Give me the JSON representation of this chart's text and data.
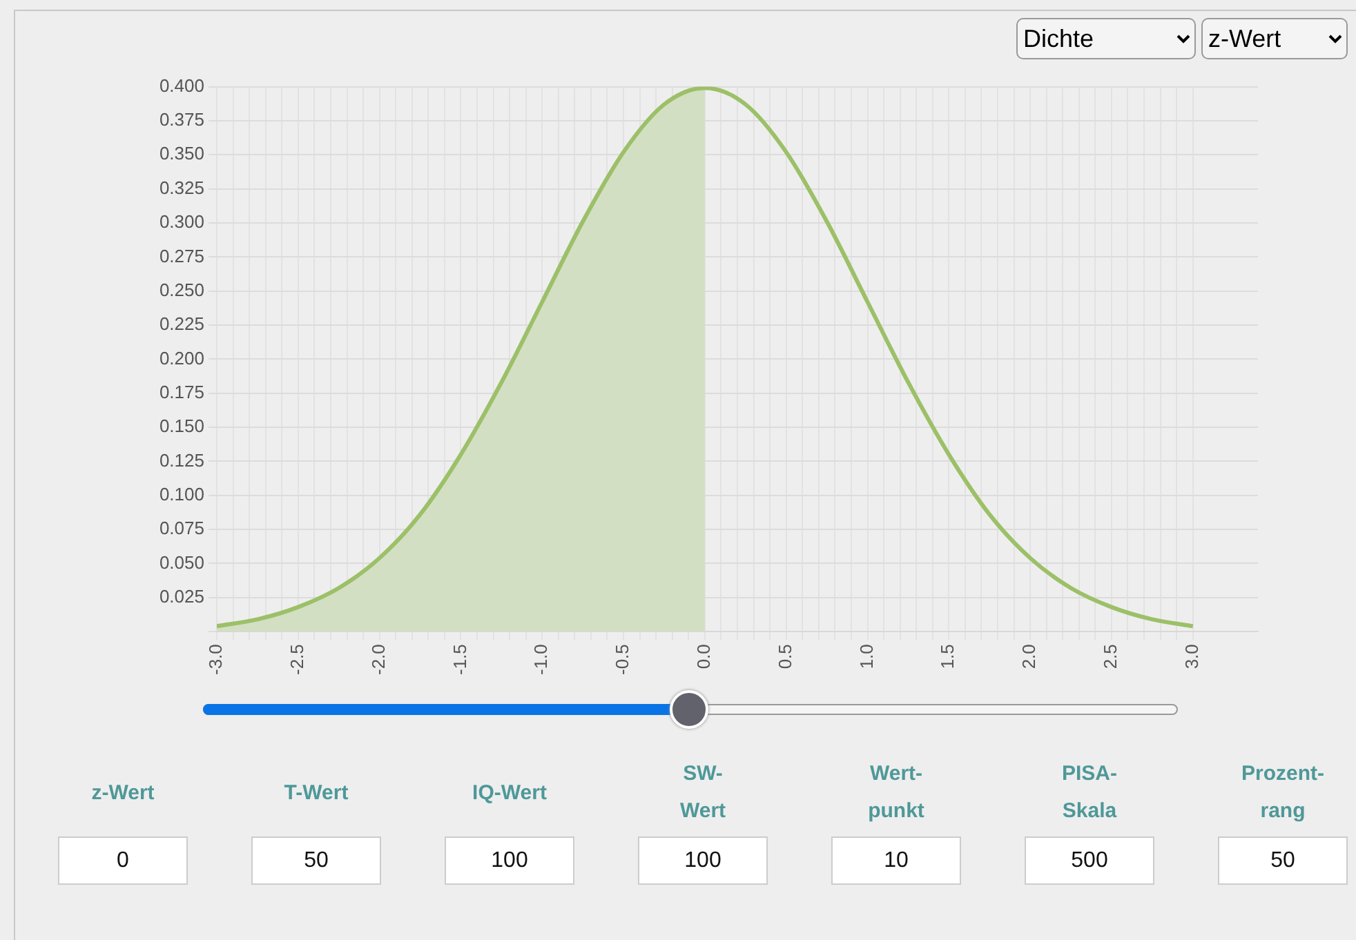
{
  "chart_data": {
    "type": "line",
    "x": [
      -3,
      -2.75,
      -2.5,
      -2.25,
      -2,
      -1.75,
      -1.5,
      -1.25,
      -1,
      -0.75,
      -0.5,
      -0.25,
      0,
      0.25,
      0.5,
      0.75,
      1,
      1.25,
      1.5,
      1.75,
      2,
      2.25,
      2.5,
      2.75,
      3
    ],
    "series": [
      {
        "color": "#9cc068",
        "values": [
          0.004,
          0.009,
          0.018,
          0.032,
          0.054,
          0.086,
          0.13,
          0.183,
          0.242,
          0.301,
          0.352,
          0.387,
          0.399,
          0.387,
          0.352,
          0.301,
          0.242,
          0.183,
          0.13,
          0.086,
          0.054,
          0.032,
          0.018,
          0.009,
          0.004
        ]
      },
      {
        "type": "area",
        "color": "#d3dfc3",
        "x": [
          -3,
          -2.75,
          -2.5,
          -2.25,
          -2,
          -1.75,
          -1.5,
          -1.25,
          -1,
          -0.75,
          -0.5,
          -0.25,
          0
        ],
        "values": [
          0.004,
          0.009,
          0.018,
          0.032,
          0.054,
          0.086,
          0.13,
          0.183,
          0.242,
          0.301,
          0.352,
          0.387,
          0.399
        ]
      }
    ],
    "xlim": [
      -3,
      3.4
    ],
    "xticks": [
      {
        "value": -3,
        "label": "-3.0"
      },
      {
        "value": -2.9,
        "label": null
      },
      {
        "value": -2.8,
        "label": null
      },
      {
        "value": -2.7,
        "label": null
      },
      {
        "value": -2.6,
        "label": null
      },
      {
        "value": -2.5,
        "label": "-2.5"
      },
      {
        "value": -2.4,
        "label": null
      },
      {
        "value": -2.3,
        "label": null
      },
      {
        "value": -2.2,
        "label": null
      },
      {
        "value": -2.1,
        "label": null
      },
      {
        "value": -2,
        "label": "-2.0"
      },
      {
        "value": -1.9,
        "label": null
      },
      {
        "value": -1.8,
        "label": null
      },
      {
        "value": -1.7,
        "label": null
      },
      {
        "value": -1.6,
        "label": null
      },
      {
        "value": -1.5,
        "label": "-1.5"
      },
      {
        "value": -1.4,
        "label": null
      },
      {
        "value": -1.3,
        "label": null
      },
      {
        "value": -1.2,
        "label": null
      },
      {
        "value": -1.1,
        "label": null
      },
      {
        "value": -1,
        "label": "-1.0"
      },
      {
        "value": -0.9,
        "label": null
      },
      {
        "value": -0.8,
        "label": null
      },
      {
        "value": -0.7,
        "label": null
      },
      {
        "value": -0.6,
        "label": null
      },
      {
        "value": -0.5,
        "label": "-0.5"
      },
      {
        "value": -0.4,
        "label": null
      },
      {
        "value": -0.3,
        "label": null
      },
      {
        "value": -0.2,
        "label": null
      },
      {
        "value": -0.1,
        "label": null
      },
      {
        "value": 0,
        "label": "0.0"
      },
      {
        "value": 0.1,
        "label": null
      },
      {
        "value": 0.2,
        "label": null
      },
      {
        "value": 0.3,
        "label": null
      },
      {
        "value": 0.4,
        "label": null
      },
      {
        "value": 0.5,
        "label": "0.5"
      },
      {
        "value": 0.6,
        "label": null
      },
      {
        "value": 0.7,
        "label": null
      },
      {
        "value": 0.8,
        "label": null
      },
      {
        "value": 0.9,
        "label": null
      },
      {
        "value": 1,
        "label": "1.0"
      },
      {
        "value": 1.1,
        "label": null
      },
      {
        "value": 1.2,
        "label": null
      },
      {
        "value": 1.3,
        "label": null
      },
      {
        "value": 1.4,
        "label": null
      },
      {
        "value": 1.5,
        "label": "1.5"
      },
      {
        "value": 1.6,
        "label": null
      },
      {
        "value": 1.7,
        "label": null
      },
      {
        "value": 1.8,
        "label": null
      },
      {
        "value": 1.9,
        "label": null
      },
      {
        "value": 2,
        "label": "2.0"
      },
      {
        "value": 2.1,
        "label": null
      },
      {
        "value": 2.2,
        "label": null
      },
      {
        "value": 2.3,
        "label": null
      },
      {
        "value": 2.4,
        "label": null
      },
      {
        "value": 2.5,
        "label": "2.5"
      },
      {
        "value": 2.6,
        "label": null
      },
      {
        "value": 2.7,
        "label": null
      },
      {
        "value": 2.8,
        "label": null
      },
      {
        "value": 2.9,
        "label": null
      },
      {
        "value": 3,
        "label": "3.0"
      }
    ],
    "ylim": [
      0,
      0.4
    ],
    "yticks": [
      {
        "value": 0,
        "label": null
      },
      {
        "value": 0.025,
        "label": "0.025"
      },
      {
        "value": 0.05,
        "label": "0.050"
      },
      {
        "value": 0.075,
        "label": "0.075"
      },
      {
        "value": 0.1,
        "label": "0.100"
      },
      {
        "value": 0.125,
        "label": "0.125"
      },
      {
        "value": 0.15,
        "label": "0.150"
      },
      {
        "value": 0.175,
        "label": "0.175"
      },
      {
        "value": 0.2,
        "label": "0.200"
      },
      {
        "value": 0.225,
        "label": "0.225"
      },
      {
        "value": 0.25,
        "label": "0.250"
      },
      {
        "value": 0.275,
        "label": "0.275"
      },
      {
        "value": 0.3,
        "label": "0.300"
      },
      {
        "value": 0.325,
        "label": "0.325"
      },
      {
        "value": 0.35,
        "label": "0.350"
      },
      {
        "value": 0.375,
        "label": "0.375"
      },
      {
        "value": 0.4,
        "label": "0.400"
      }
    ],
    "grid": true,
    "legend": false,
    "marker": "none",
    "line_style": "solid",
    "annotations": [
      "Dichte",
      "z-Wert",
      "z-Wert",
      "T-Wert",
      "IQ-Wert",
      "SW-Wert",
      "Wert-punkt",
      "PISA-Skala",
      "Prozent-rang",
      "0",
      "50",
      "100",
      "100",
      "10",
      "500",
      "50"
    ]
  }
}
